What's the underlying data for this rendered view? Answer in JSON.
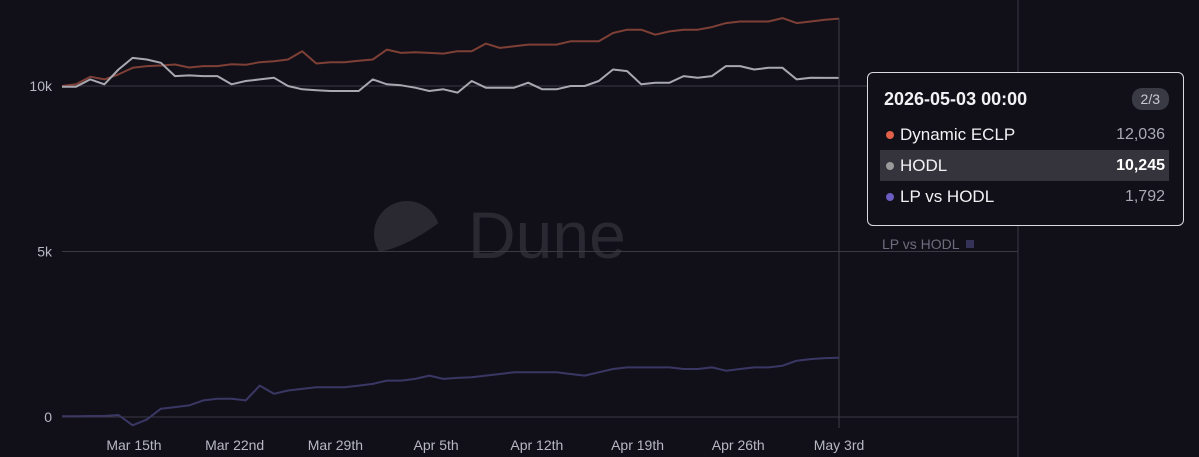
{
  "watermark": "Dune",
  "tooltip": {
    "date": "2026-05-03 00:00",
    "page": "2/3",
    "rows": [
      {
        "name": "Dynamic ECLP",
        "value": "12,036",
        "color": "#e0604a"
      },
      {
        "name": "HODL",
        "value": "10,245",
        "color": "#9a9a9a"
      },
      {
        "name": "LP vs HODL",
        "value": "1,792",
        "color": "#6a5cc0"
      }
    ]
  },
  "legend_ghost": {
    "label": "LP vs HODL"
  },
  "chart_data": {
    "type": "line",
    "x_start": "2026-03-10",
    "x_end": "2026-05-03",
    "x_ticks": [
      "Mar 15th",
      "Mar 22nd",
      "Mar 29th",
      "Apr 5th",
      "Apr 12th",
      "Apr 19th",
      "Apr 26th",
      "May 3rd"
    ],
    "y_ticks": [
      "0",
      "5k",
      "10k"
    ],
    "y_tick_values": [
      0,
      5000,
      10000
    ],
    "ylim": [
      -300,
      12300
    ],
    "grid": true,
    "series": [
      {
        "name": "Dynamic ECLP",
        "color": "#7e3f35",
        "values": [
          10000,
          10050,
          10280,
          10200,
          10350,
          10550,
          10600,
          10620,
          10650,
          10560,
          10600,
          10600,
          10660,
          10640,
          10720,
          10750,
          10800,
          11050,
          10680,
          10720,
          10720,
          10760,
          10800,
          11100,
          11000,
          11020,
          11000,
          10980,
          11050,
          11050,
          11280,
          11150,
          11200,
          11250,
          11250,
          11250,
          11350,
          11350,
          11350,
          11600,
          11700,
          11700,
          11550,
          11650,
          11700,
          11700,
          11780,
          11900,
          11950,
          11950,
          11950,
          12050,
          11900,
          11950,
          12000,
          12036
        ]
      },
      {
        "name": "HODL",
        "color": "#a8a8b0",
        "values": [
          9980,
          9980,
          10200,
          10050,
          10500,
          10850,
          10800,
          10700,
          10300,
          10320,
          10300,
          10300,
          10050,
          10150,
          10200,
          10250,
          10000,
          9900,
          9870,
          9850,
          9850,
          9850,
          10200,
          10050,
          10020,
          9950,
          9850,
          9900,
          9800,
          10150,
          9950,
          9950,
          9950,
          10100,
          9900,
          9900,
          10000,
          10000,
          10150,
          10500,
          10450,
          10050,
          10100,
          10100,
          10300,
          10250,
          10300,
          10600,
          10600,
          10500,
          10550,
          10550,
          10200,
          10250,
          10245,
          10245
        ]
      },
      {
        "name": "LP vs HODL",
        "color": "#3a3764",
        "values": [
          20,
          20,
          30,
          30,
          60,
          -250,
          -80,
          250,
          300,
          350,
          500,
          550,
          550,
          500,
          950,
          700,
          800,
          850,
          900,
          900,
          900,
          950,
          1000,
          1100,
          1100,
          1150,
          1250,
          1150,
          1180,
          1200,
          1250,
          1300,
          1350,
          1350,
          1350,
          1350,
          1300,
          1250,
          1350,
          1450,
          1500,
          1500,
          1500,
          1500,
          1450,
          1450,
          1500,
          1400,
          1450,
          1500,
          1500,
          1550,
          1700,
          1750,
          1780,
          1792
        ]
      }
    ]
  }
}
